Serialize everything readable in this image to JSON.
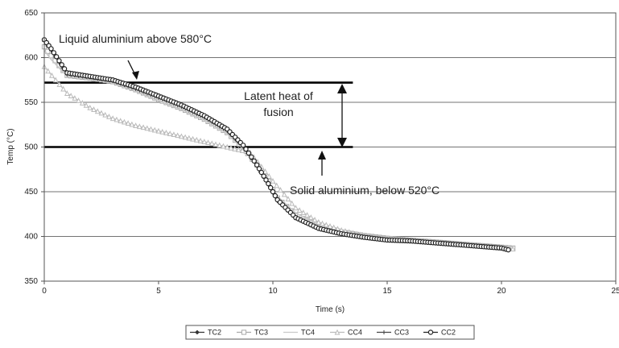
{
  "chart_data": {
    "type": "line",
    "xlabel": "Time (s)",
    "ylabel": "Temp (°C)",
    "xlim": [
      0,
      25
    ],
    "ylim": [
      350,
      650
    ],
    "xticks": [
      "0",
      "5",
      "10",
      "15",
      "20",
      "25"
    ],
    "yticks": [
      "350",
      "400",
      "450",
      "500",
      "550",
      "600",
      "650"
    ],
    "grid": "horizontal",
    "legend_position": "bottom",
    "reference_lines": [
      {
        "y": 572,
        "x_range": [
          0,
          13.5
        ]
      },
      {
        "y": 500,
        "x_range": [
          0,
          13.5
        ]
      }
    ],
    "annotations": {
      "liquid": "Liquid aluminium above 580°C",
      "latent_line1": "Latent heat of",
      "latent_line2": "fusion",
      "solid": "Solid aluminium, below 520°C"
    },
    "series": [
      {
        "name": "TC2",
        "color": "#333333",
        "marker": "diamond",
        "x": [
          0,
          0.3,
          1,
          2,
          3,
          4,
          5,
          6,
          7,
          8,
          8.7,
          9.3,
          9.8,
          10.2,
          11,
          12,
          13,
          14,
          15,
          16,
          17,
          18,
          19,
          20,
          20.3
        ],
        "y": [
          620,
          610,
          582,
          578,
          574,
          566,
          556,
          546,
          534,
          519,
          501,
          480,
          460,
          440,
          422,
          410,
          404,
          400,
          397,
          396,
          394,
          392,
          390,
          388,
          386
        ]
      },
      {
        "name": "TC3",
        "color": "#aaaaaa",
        "marker": "square",
        "x": [
          0,
          0.3,
          1,
          2,
          3,
          4,
          5,
          6,
          7,
          8,
          8.7,
          9.3,
          9.8,
          10.2,
          11,
          12,
          13,
          14,
          15,
          16,
          17,
          18,
          19,
          20,
          20.5
        ],
        "y": [
          612,
          602,
          580,
          577,
          573,
          564,
          553,
          543,
          531,
          516,
          499,
          480,
          462,
          443,
          424,
          412,
          405,
          401,
          398,
          396,
          394,
          392,
          390,
          388,
          387
        ]
      },
      {
        "name": "TC4",
        "color": "#c8c8c8",
        "marker": "none",
        "x": [
          0,
          0.3,
          1,
          2,
          3,
          4,
          5,
          6,
          7,
          8,
          8.7,
          9.3,
          9.8,
          10.2,
          11,
          12,
          13,
          14,
          15,
          16,
          17,
          18,
          19,
          20,
          20.5
        ],
        "y": [
          608,
          598,
          579,
          576,
          572,
          563,
          552,
          542,
          530,
          515,
          498,
          479,
          462,
          445,
          426,
          413,
          406,
          402,
          399,
          397,
          395,
          393,
          391,
          389,
          388
        ]
      },
      {
        "name": "CC4",
        "color": "#bbbbbb",
        "marker": "triangle",
        "x": [
          0,
          0.5,
          1,
          2,
          3,
          4,
          5,
          6,
          7,
          8,
          9,
          9.5,
          10,
          10.5,
          11,
          12,
          13,
          14,
          15,
          16,
          17,
          18,
          19,
          20,
          20.5
        ],
        "y": [
          590,
          575,
          560,
          544,
          532,
          524,
          518,
          512,
          506,
          500,
          494,
          478,
          462,
          447,
          432,
          416,
          407,
          401,
          398,
          396,
          394,
          392,
          390,
          388,
          386
        ]
      },
      {
        "name": "CC3",
        "color": "#444444",
        "marker": "plus",
        "x": [
          0,
          0.3,
          1,
          2,
          3,
          4,
          5,
          6,
          7,
          8,
          8.7,
          9.3,
          9.8,
          10.2,
          11,
          12,
          13,
          14,
          15,
          16,
          17,
          18,
          19,
          20,
          20.3
        ],
        "y": [
          618,
          608,
          581,
          578,
          574,
          565,
          555,
          545,
          533,
          518,
          500,
          479,
          458,
          440,
          421,
          409,
          403,
          399,
          396,
          395,
          393,
          391,
          389,
          387,
          385
        ]
      },
      {
        "name": "CC2",
        "color": "#222222",
        "marker": "circle",
        "x": [
          0,
          0.3,
          1,
          2,
          3,
          4,
          5,
          6,
          7,
          8,
          8.7,
          9.3,
          9.8,
          10.2,
          11,
          12,
          13,
          14,
          15,
          16,
          17,
          18,
          19,
          20,
          20.3
        ],
        "y": [
          620,
          610,
          583,
          579,
          575,
          567,
          557,
          547,
          535,
          520,
          502,
          480,
          459,
          441,
          421,
          409,
          403,
          399,
          396,
          395,
          393,
          391,
          389,
          387,
          385
        ]
      }
    ]
  }
}
